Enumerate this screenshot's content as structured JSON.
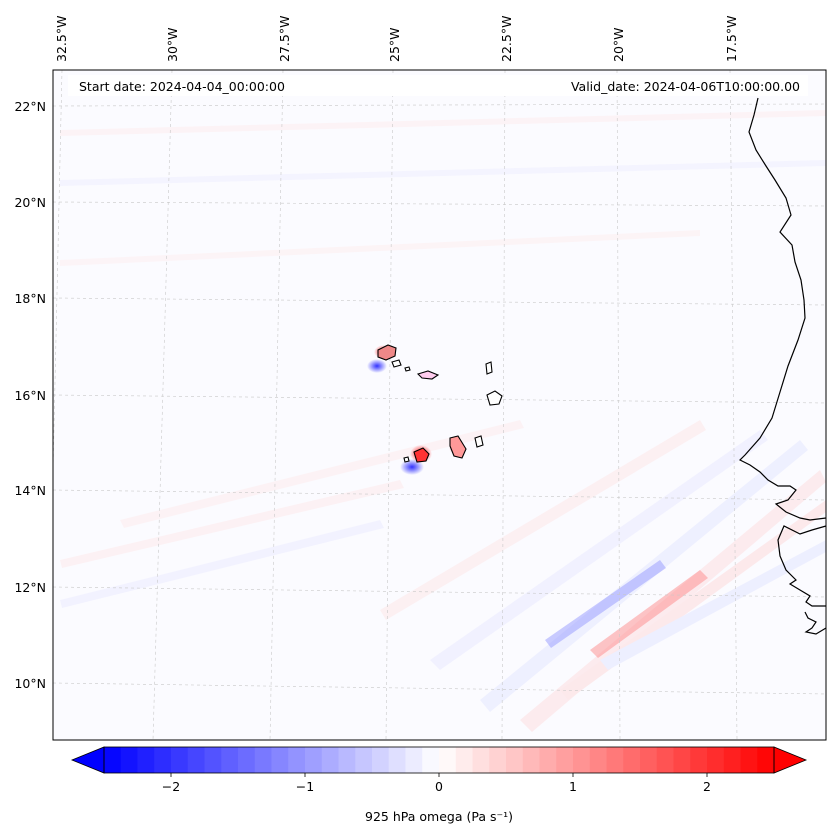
{
  "map": {
    "start_date": "Start date: 2024-04-04_00:00:00",
    "valid_date": "Valid_date: 2024-04-06T10:00:00.00",
    "lon_labels": [
      "32.5°W",
      "30°W",
      "27.5°W",
      "25°W",
      "22.5°W",
      "20°W",
      "17.5°W"
    ],
    "lat_labels": [
      "22°N",
      "20°N",
      "18°N",
      "16°N",
      "14°N",
      "12°N",
      "10°N"
    ],
    "colors": {
      "negative": "#0000ff",
      "positive": "#ff0000",
      "neutral": "#ffffff",
      "coastline": "#000000",
      "gridline": "#c8c8c8"
    }
  },
  "colorbar": {
    "label": "925 hPa omega (Pa s⁻¹)",
    "ticks": [
      "−2",
      "−1",
      "0",
      "1",
      "2"
    ],
    "tick_values": [
      -2,
      -1,
      0,
      1,
      2
    ],
    "vmin": -2.5,
    "vmax": 2.5,
    "extend": "both"
  }
}
